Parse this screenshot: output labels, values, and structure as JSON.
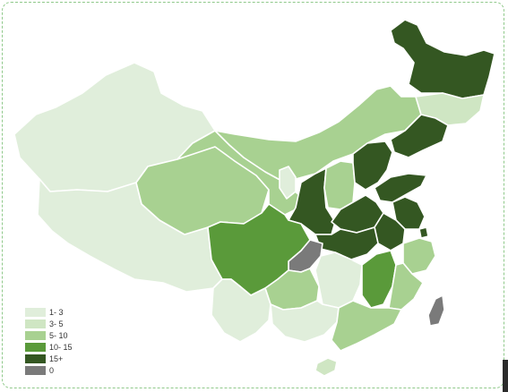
{
  "colors": {
    "1-3": "#e0eedb",
    "3-5": "#cfe6c3",
    "5-10": "#a8d191",
    "10-15": "#5a9a3a",
    "15+": "#345722",
    "0": "#7a7a7a"
  },
  "legend": [
    {
      "label": "1- 3",
      "color": "#e0eedb"
    },
    {
      "label": "3- 5",
      "color": "#cfe6c3"
    },
    {
      "label": "5- 10",
      "color": "#a8d191"
    },
    {
      "label": "10- 15",
      "color": "#5a9a3a"
    },
    {
      "label": "15+",
      "color": "#345722"
    },
    {
      "label": "0",
      "color": "#7a7a7a"
    }
  ]
}
